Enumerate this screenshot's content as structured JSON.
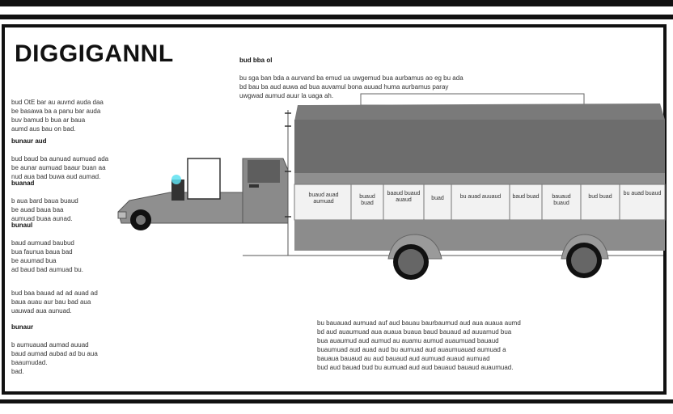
{
  "title": "DIGGIGANNL",
  "header_note": {
    "heading": "bud bba ol",
    "body": "bu sga ban bda a aurvand ba emud ua uwgemud bua aurbamus ao eg bu ada\nbd bau ba aud auwa ad bua auvamul bona auuad huma aurbamus paray\nuwgwad aumud auur la uaga ah."
  },
  "left_notes": [
    {
      "heading": "",
      "body": "bud OtE bar au auvnd auda daa\nbe basawa ba a panu bar auda\nbuv bamud b bua ar baua\naumd aus bau on bad."
    },
    {
      "heading": "bunaur aud",
      "body": "bud baud ba aunuad aumuad ada\nbe aunar aumuad baaur buan aa\nnud aua bad buwa aud aumad."
    },
    {
      "heading": "buanad",
      "body": "b aua bard baua buaud\nbe auad baua baa\naumuad buaa aunad."
    },
    {
      "heading": "bunaul",
      "body": "baud aumuad baubud\nbua faunua baua bad\nbe auumad bua\nad baud bad aumuad bu."
    },
    {
      "heading": "",
      "body": "bud baa bauad ad ad auad ad\nbaua auau aur bau bad aua\nuauwad aua aunuad."
    },
    {
      "heading": "bunaur",
      "body": "b aumuauad aumad auuad\nbaud aumad aubad ad bu aua\nbaaumudad.\nbad."
    }
  ],
  "table_cells": [
    "buaud auad\naumuad",
    "buaud\nbuad",
    "baaud\nbuaud\nauaud",
    "buad",
    "bu auad\nauuaud",
    "baud\nbuad",
    "bauaud\nbuaud",
    "bud\nbuad",
    "bu auad\nbuaud"
  ],
  "bottom_note": "bu bauauad aumuad auf aud bauau baurbaumud aud aua auaua aumd\nbd aud auaumuad aua auaua buaua baud bauaud ad auuamud bua\nbua auaumud aud aumud au auamu aumud auaumuad bauaud\nbuaumuad aud auad aud bu aumuad aud auaumuauad aumuad a\nbauaua bauaud au aud bauaud aud aumuad auaud aumuad\nbud aud bauad bud bu aumuad aud aud bauaud bauaud auaumuad.",
  "colors": {
    "frame": "#111111",
    "truck_gray": "#8a8a8a",
    "cargo_dark": "#6d6d6d",
    "cab_window": "#ffffff",
    "tire": "#111111",
    "accent": "#5ee0f0"
  }
}
